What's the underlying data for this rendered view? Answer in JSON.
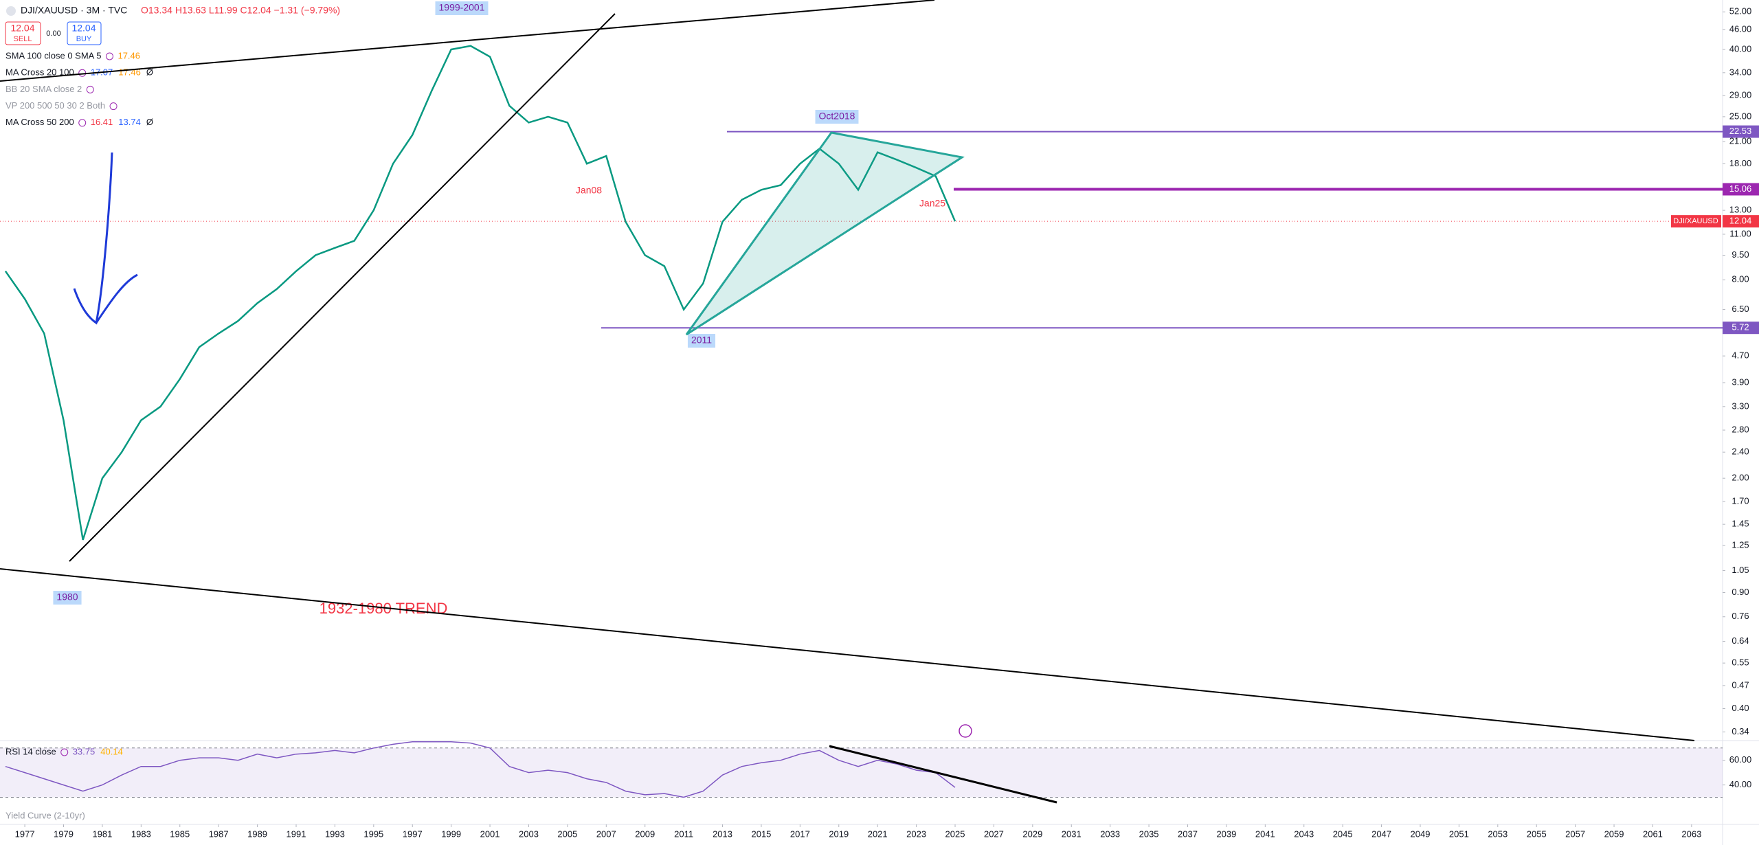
{
  "header": {
    "symbol": "DJI/XAUUSD · 3M · TVC",
    "ohlc": "O13.34 H13.63 L11.99 C12.04 −1.31 (−9.79%)",
    "sell_price": "12.04",
    "sell": "SELL",
    "spread": "0.00",
    "buy_price": "12.04",
    "buy": "BUY"
  },
  "indicators": [
    {
      "name": "SMA 100 close 0 SMA 5",
      "values": [
        "17.46"
      ]
    },
    {
      "name": "MA Cross 20 100",
      "values": [
        "17.07",
        "17.46",
        "Ø"
      ]
    },
    {
      "name": "BB 20 SMA close 2",
      "values": []
    },
    {
      "name": "VP 200 500 50 30 2 Both",
      "values": []
    },
    {
      "name": "MA Cross 50 200",
      "values": [
        "16.41",
        "13.74",
        "Ø"
      ]
    }
  ],
  "chart_data": [
    {
      "type": "line",
      "log": true,
      "grid": false,
      "x": [
        1976,
        1977,
        1978,
        1979,
        1980,
        1981,
        1982,
        1983,
        1984,
        1985,
        1986,
        1987,
        1988,
        1989,
        1990,
        1991,
        1992,
        1993,
        1994,
        1995,
        1996,
        1997,
        1998,
        1999,
        2000,
        2001,
        2002,
        2003,
        2004,
        2005,
        2006,
        2007,
        2008,
        2009,
        2010,
        2011,
        2012,
        2013,
        2014,
        2015,
        2016,
        2017,
        2018,
        2019,
        2020,
        2021,
        2022,
        2023,
        2024,
        2025
      ],
      "series": [
        {
          "name": "DJI/XAUUSD",
          "color": "#089981",
          "values": [
            8.5,
            7.0,
            5.5,
            3.0,
            1.3,
            2.0,
            2.4,
            3.0,
            3.3,
            4.0,
            5.0,
            5.5,
            6.0,
            6.8,
            7.5,
            8.5,
            9.5,
            10.0,
            10.5,
            13.0,
            18.0,
            22.0,
            30.0,
            40.0,
            41.0,
            38.0,
            27.0,
            24.0,
            25.0,
            24.0,
            18.0,
            19.0,
            12.0,
            9.5,
            8.8,
            6.5,
            7.8,
            12.0,
            14.0,
            15.0,
            15.5,
            18.0,
            20.0,
            18.0,
            15.0,
            19.5,
            18.5,
            17.5,
            16.5,
            12.04
          ]
        }
      ],
      "xlim": [
        1975.72,
        2064.6
      ],
      "xticks": [
        1977,
        1979,
        1981,
        1983,
        1985,
        1987,
        1989,
        1991,
        1993,
        1995,
        1997,
        1999,
        2001,
        2003,
        2005,
        2007,
        2009,
        2011,
        2013,
        2015,
        2017,
        2019,
        2021,
        2023,
        2025,
        2027,
        2029,
        2031,
        2033,
        2035,
        2037,
        2039,
        2041,
        2043,
        2045,
        2047,
        2049,
        2051,
        2053,
        2055,
        2057,
        2059,
        2061,
        2063
      ],
      "ylim": [
        0.32,
        56.5
      ],
      "yticks": [
        {
          "value": 52,
          "label": "52.00"
        },
        {
          "value": 46,
          "label": "46.00"
        },
        {
          "value": 40,
          "label": "40.00"
        },
        {
          "value": 34,
          "label": "34.00"
        },
        {
          "value": 29,
          "label": "29.00"
        },
        {
          "value": 25,
          "label": "25.00"
        },
        {
          "value": 21,
          "label": "21.00"
        },
        {
          "value": 18,
          "label": "18.00"
        },
        {
          "value": 13,
          "label": "13.00"
        },
        {
          "value": 11,
          "label": "11.00"
        },
        {
          "value": 9.5,
          "label": "9.50"
        },
        {
          "value": 8,
          "label": "8.00"
        },
        {
          "value": 6.5,
          "label": "6.50"
        },
        {
          "value": 4.7,
          "label": "4.70"
        },
        {
          "value": 3.9,
          "label": "3.90"
        },
        {
          "value": 3.3,
          "label": "3.30"
        },
        {
          "value": 2.8,
          "label": "2.80"
        },
        {
          "value": 2.4,
          "label": "2.40"
        },
        {
          "value": 2,
          "label": "2.00"
        },
        {
          "value": 1.7,
          "label": "1.70"
        },
        {
          "value": 1.45,
          "label": "1.45"
        },
        {
          "value": 1.25,
          "label": "1.25"
        },
        {
          "value": 1.05,
          "label": "1.05"
        },
        {
          "value": 0.9,
          "label": "0.90"
        },
        {
          "value": 0.76,
          "label": "0.76"
        },
        {
          "value": 0.64,
          "label": "0.64"
        },
        {
          "value": 0.55,
          "label": "0.55"
        },
        {
          "value": 0.47,
          "label": "0.47"
        },
        {
          "value": 0.4,
          "label": "0.40"
        },
        {
          "value": 0.34,
          "label": "0.34"
        }
      ],
      "levels": [
        {
          "value": 22.53,
          "color": "#7e57c2"
        },
        {
          "value": 15.06,
          "color": "#9c27b0"
        },
        {
          "value": 5.72,
          "color": "#7e57c2"
        }
      ],
      "last_price": {
        "name": "DJI/XAUUSD",
        "value": 12.04,
        "color": "#f23645"
      },
      "annotations": [
        "1999-2001",
        "Oct2018",
        "Jan08",
        "Jan25",
        "2011",
        "1980",
        "1932-1980 TREND"
      ]
    },
    {
      "type": "line",
      "title": "RSI 14 close",
      "legend_values": [
        "33.75",
        "40.14"
      ],
      "overlay_label": "Yield Curve (2-10yr)",
      "series": [
        {
          "name": "RSI",
          "color": "#7e57c2",
          "values": [
            55,
            50,
            45,
            40,
            35,
            40,
            48,
            55,
            55,
            60,
            62,
            62,
            60,
            65,
            62,
            65,
            66,
            68,
            66,
            70,
            73,
            75,
            75,
            75,
            74,
            70,
            55,
            50,
            52,
            50,
            45,
            42,
            35,
            32,
            33,
            30,
            35,
            48,
            55,
            58,
            60,
            65,
            68,
            60,
            55,
            60,
            57,
            52,
            50,
            38
          ]
        }
      ],
      "ylim": [
        8,
        76
      ],
      "band": [
        30,
        70
      ],
      "yticks": [
        {
          "value": 60,
          "label": "60.00"
        },
        {
          "value": 40,
          "label": "40.00"
        }
      ]
    }
  ]
}
